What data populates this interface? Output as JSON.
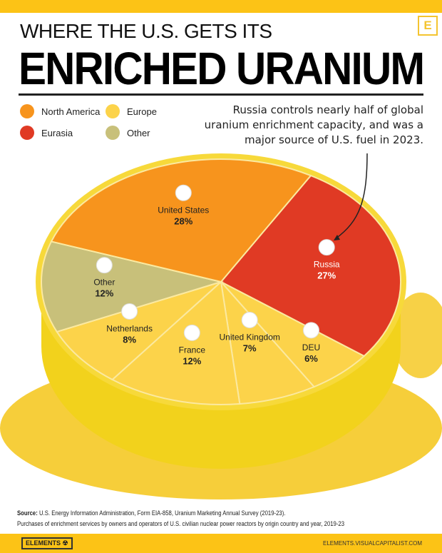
{
  "header": {
    "subtitle": "WHERE THE U.S. GETS ITS",
    "title": "ENRICHED URANIUM",
    "badge": "E"
  },
  "colors": {
    "North America": "#F7941D",
    "Eurasia": "#E03A24",
    "Europe": "#FCD34A",
    "Other": "#C8C07A"
  },
  "annotation": "Russia controls nearly half of global uranium enrichment capacity, and was a major source of U.S. fuel in 2023.",
  "chart_data": {
    "type": "pie",
    "legend": [
      {
        "name": "North America",
        "color": "#F7941D"
      },
      {
        "name": "Europe",
        "color": "#FCD34A"
      },
      {
        "name": "Eurasia",
        "color": "#E03A24"
      },
      {
        "name": "Other",
        "color": "#C8C07A"
      }
    ],
    "legend_position": "top-left",
    "slices": [
      {
        "label": "Russia",
        "value": 27,
        "display": "27%",
        "region": "Eurasia",
        "flag": "russia-flag"
      },
      {
        "label": "DEU",
        "value": 6,
        "display": "6%",
        "region": "Europe",
        "flag": "germany-flag"
      },
      {
        "label": "United Kingdom",
        "value": 7,
        "display": "7%",
        "region": "Europe",
        "flag": "uk-flag"
      },
      {
        "label": "France",
        "value": 12,
        "display": "12%",
        "region": "Europe",
        "flag": "france-flag"
      },
      {
        "label": "Netherlands",
        "value": 8,
        "display": "8%",
        "region": "Europe",
        "flag": "netherlands-flag"
      },
      {
        "label": "Other",
        "value": 12,
        "display": "12%",
        "region": "Other",
        "flag": "globe"
      },
      {
        "label": "United States",
        "value": 28,
        "display": "28%",
        "region": "North America",
        "flag": "us-flag"
      }
    ]
  },
  "footer": {
    "source_label": "Source:",
    "source": "U.S. Energy Information Administration, Form EIA-858, Uranium Marketing Annual Survey (2019-23).",
    "note": "Purchases of enrichment services by owners and operators of U.S. civilian nuclear power reactors by origin country and year, 2019-23",
    "logo": "ELEMENTS ☢",
    "url": "ELEMENTS.VISUALCAPITALIST.COM"
  }
}
